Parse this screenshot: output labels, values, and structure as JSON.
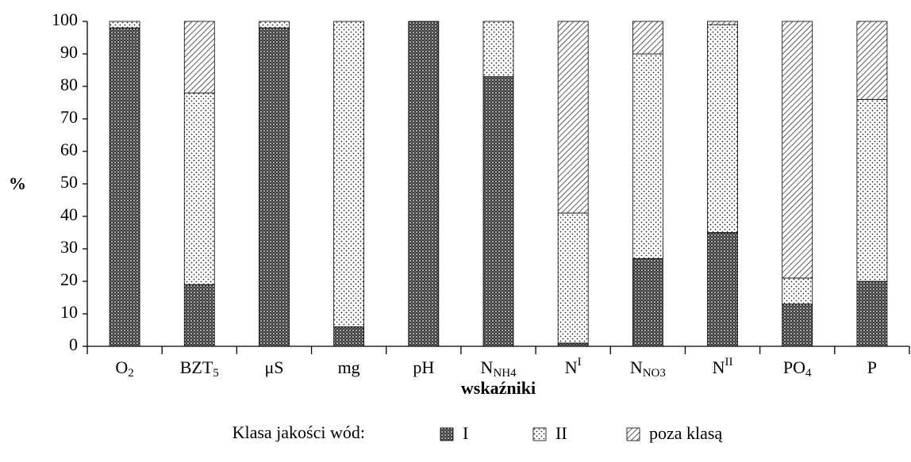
{
  "chart_data": {
    "type": "stacked_bar",
    "y_label": "%",
    "x_label": "wskaźniki",
    "legend_title": "Klasa jakości wód:",
    "categories": [
      {
        "text": "O",
        "sub": "2"
      },
      {
        "text": "BZT",
        "sub": "5"
      },
      {
        "text": "μS"
      },
      {
        "text": "mg"
      },
      {
        "text": "pH"
      },
      {
        "text": "N",
        "sub": "NH4"
      },
      {
        "text": "N",
        "sup": "I"
      },
      {
        "text": "N",
        "sub": "NO3"
      },
      {
        "text": "N",
        "sup": "II"
      },
      {
        "text": "PO",
        "sub": "4"
      },
      {
        "text": "P"
      }
    ],
    "series": [
      {
        "name": "I",
        "color": "#3a3a3a",
        "pattern": "cross",
        "values": [
          98,
          19,
          98,
          6,
          100,
          83,
          1,
          27,
          35,
          13,
          20
        ]
      },
      {
        "name": "II",
        "color": "#222222",
        "pattern": "dots",
        "values": [
          2,
          59,
          2,
          94,
          0,
          17,
          40,
          63,
          64,
          8,
          56
        ]
      },
      {
        "name": "poza klasą",
        "color": "#333333",
        "pattern": "diagonal",
        "values": [
          0,
          22,
          0,
          0,
          0,
          0,
          59,
          10,
          1,
          79,
          24
        ]
      }
    ],
    "ylim": [
      0,
      100
    ],
    "yticks": [
      0,
      10,
      20,
      30,
      40,
      50,
      60,
      70,
      80,
      90,
      100
    ],
    "grid": false
  }
}
